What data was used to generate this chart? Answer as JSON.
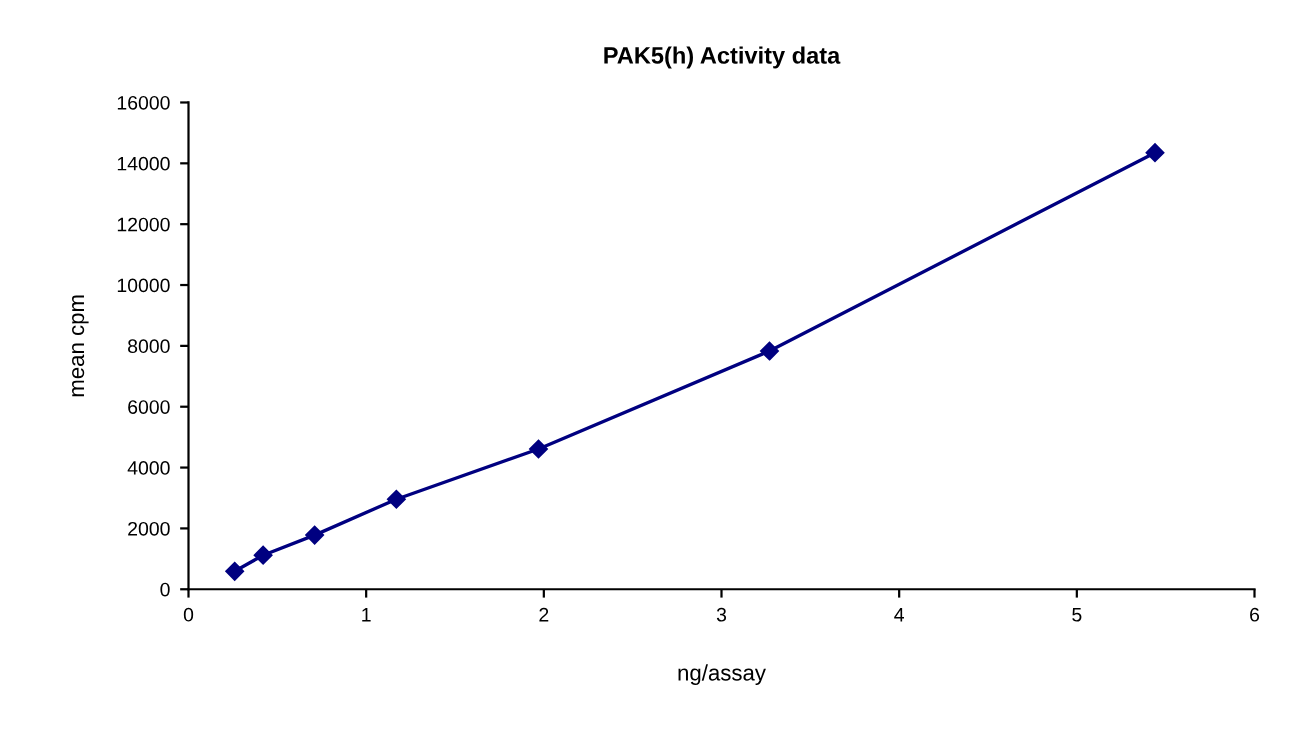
{
  "chart_data": {
    "type": "line",
    "title": "PAK5(h) Activity data",
    "xlabel": "ng/assay",
    "ylabel": "mean cpm",
    "x": [
      0.26,
      0.42,
      0.71,
      1.17,
      1.97,
      3.27,
      5.44
    ],
    "series": [
      {
        "color": "#000080",
        "values": [
          590,
          1120,
          1780,
          2960,
          4610,
          7830,
          14350
        ]
      }
    ],
    "xlim": [
      0,
      6
    ],
    "xticks": [
      0,
      1,
      2,
      3,
      4,
      5,
      6
    ],
    "ylim": [
      0,
      16000
    ],
    "yticks": [
      0,
      2000,
      4000,
      6000,
      8000,
      10000,
      12000,
      14000,
      16000
    ],
    "grid": false,
    "legend": false,
    "marker": "diamond",
    "line_style": "solid"
  }
}
